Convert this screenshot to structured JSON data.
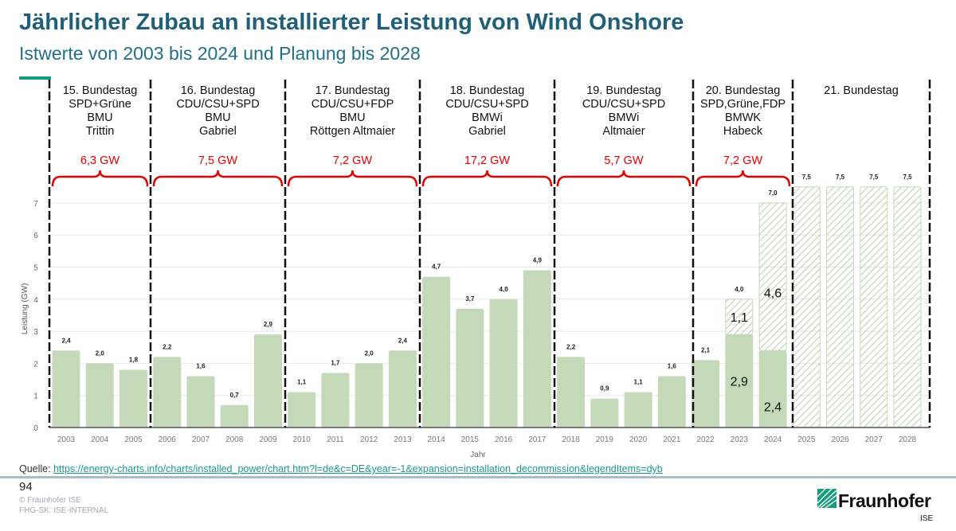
{
  "header": {
    "title": "Jährlicher Zubau an installierter Leistung von Wind Onshore",
    "subtitle": "Istwerte von 2003 bis 2024 und Planung bis 2028"
  },
  "periods": [
    {
      "lines": [
        "15. Bundestag",
        "SPD+Grüne",
        "BMU",
        "Trittin"
      ],
      "total": "6,3 GW"
    },
    {
      "lines": [
        "16. Bundestag",
        "CDU/CSU+SPD",
        "BMU",
        "Gabriel"
      ],
      "total": "7,5 GW"
    },
    {
      "lines": [
        "17. Bundestag",
        "CDU/CSU+FDP",
        "BMU",
        "Röttgen    Altmaier"
      ],
      "total": "7,2 GW"
    },
    {
      "lines": [
        "18. Bundestag",
        "CDU/CSU+SPD",
        "BMWi",
        "Gabriel"
      ],
      "total": "17,2 GW"
    },
    {
      "lines": [
        "19. Bundestag",
        "CDU/CSU+SPD",
        "BMWi",
        "Altmaier"
      ],
      "total": "5,7 GW"
    },
    {
      "lines": [
        "20. Bundestag",
        "SPD,Grüne,FDP",
        "BMWK",
        "Habeck"
      ],
      "total": "7,2 GW"
    },
    {
      "lines": [
        "21. Bundestag"
      ],
      "total": ""
    }
  ],
  "chart_data": {
    "type": "bar",
    "xlabel": "Jahr",
    "ylabel": "Leistung (GW)",
    "ylim": [
      0,
      7.5
    ],
    "yticks": [
      "0",
      "1",
      "2",
      "3",
      "4",
      "5",
      "6",
      "7"
    ],
    "categories": [
      "2003",
      "2004",
      "2005",
      "2006",
      "2007",
      "2008",
      "2009",
      "2010",
      "2011",
      "2012",
      "2013",
      "2014",
      "2015",
      "2016",
      "2017",
      "2018",
      "2019",
      "2020",
      "2021",
      "2022",
      "2023",
      "2024",
      "2025",
      "2026",
      "2027",
      "2028"
    ],
    "series": [
      {
        "style": "solid",
        "values": [
          2.4,
          2.0,
          1.8,
          2.2,
          1.6,
          0.7,
          2.9,
          1.1,
          1.7,
          2.0,
          2.4,
          4.7,
          3.7,
          4.0,
          4.9,
          2.2,
          0.9,
          1.1,
          1.6,
          2.1,
          2.9,
          2.4,
          0,
          0,
          0,
          0
        ]
      },
      {
        "style": "hatched",
        "values": [
          0,
          0,
          0,
          0,
          0,
          0,
          0,
          0,
          0,
          0,
          0,
          0,
          0,
          0,
          0,
          0,
          0,
          0,
          0,
          0,
          1.1,
          4.6,
          7.5,
          7.5,
          7.5,
          7.5
        ]
      }
    ],
    "top_labels": [
      "2,4",
      "2,0",
      "1,8",
      "2,2",
      "1,6",
      "0,7",
      "2,9",
      "1,1",
      "1,7",
      "2,0",
      "2,4",
      "4,7",
      "3,7",
      "4,0",
      "4,9",
      "2,2",
      "0,9",
      "1,1",
      "1,6",
      "2,1",
      "4,0",
      "7,0",
      "7,5",
      "7,5",
      "7,5",
      "7,5"
    ],
    "inner_labels": {
      "2023": [
        "2,9",
        "1,1"
      ],
      "2024": [
        "2,4",
        "4,6"
      ]
    },
    "colors": {
      "bar": "#c3d9b8",
      "hatch": "#9cc48c",
      "divider": "#111111",
      "brace": "#e60000",
      "grid": "#e8e8e8"
    }
  },
  "footer": {
    "source_label": "Quelle:",
    "source_url": "https://energy-charts.info/charts/installed_power/chart.htm?l=de&c=DE&year=-1&expansion=installation_decommission&legendItems=dyb",
    "page": "94",
    "copyright": "© Fraunhofer ISE",
    "classification": "FHG-SK: ISE-INTERNAL",
    "logo": "Fraunhofer",
    "logo_sub": "ISE"
  }
}
